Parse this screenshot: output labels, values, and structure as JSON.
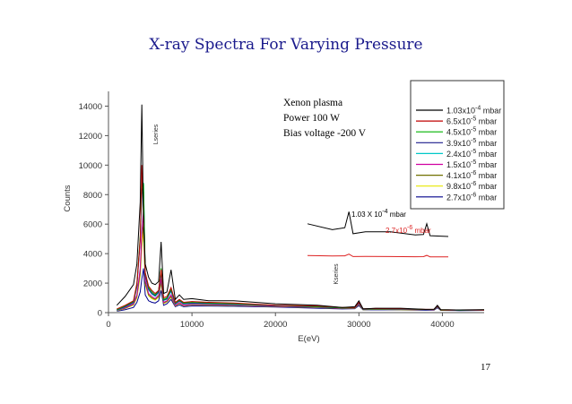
{
  "slide": {
    "page_number": "17"
  },
  "chart_data": {
    "type": "line",
    "title": "X-ray Spectra For Varying Pressure",
    "xlabel": "E(eV)",
    "ylabel": "Counts",
    "xlim": [
      0,
      45000
    ],
    "ylim": [
      0,
      15000
    ],
    "xticks": [
      0,
      10000,
      20000,
      30000,
      40000
    ],
    "yticks": [
      0,
      2000,
      4000,
      6000,
      8000,
      10000,
      12000,
      14000
    ],
    "x": [
      1000,
      2000,
      3000,
      3400,
      3800,
      4000,
      4200,
      4400,
      4800,
      5200,
      5600,
      6000,
      6300,
      6600,
      7000,
      7500,
      8000,
      8500,
      9000,
      10000,
      12000,
      15000,
      20000,
      25000,
      28000,
      29500,
      30000,
      30500,
      32000,
      35000,
      38000,
      39000,
      39400,
      39800,
      42000,
      45000
    ],
    "series": [
      {
        "name": "1.03x10^-4 mbar",
        "color": "#000000",
        "values": [
          500,
          1100,
          1900,
          3300,
          7500,
          14100,
          6000,
          3300,
          2400,
          2000,
          1900,
          2100,
          4800,
          1300,
          1400,
          2900,
          900,
          1200,
          900,
          950,
          800,
          800,
          600,
          500,
          350,
          400,
          800,
          250,
          300,
          300,
          220,
          230,
          500,
          200,
          180,
          200
        ]
      },
      {
        "name": "6.5x10^-5 mbar",
        "color": "#c00000",
        "values": [
          250,
          500,
          800,
          2000,
          5000,
          10000,
          6500,
          2700,
          1800,
          1500,
          1300,
          1500,
          2900,
          1000,
          1100,
          1700,
          700,
          900,
          700,
          750,
          700,
          650,
          500,
          450,
          350,
          350,
          700,
          260,
          280,
          260,
          220,
          230,
          460,
          200,
          180,
          190
        ]
      },
      {
        "name": "4.5x10^-5 mbar",
        "color": "#00b400",
        "values": [
          200,
          450,
          750,
          1900,
          5200,
          9000,
          8700,
          2700,
          1700,
          1400,
          1200,
          1500,
          3000,
          900,
          1000,
          1600,
          650,
          850,
          650,
          700,
          650,
          600,
          500,
          400,
          330,
          340,
          700,
          250,
          270,
          250,
          210,
          220,
          460,
          200,
          170,
          190
        ]
      },
      {
        "name": "3.9x10^-5 mbar",
        "color": "#1c1c8c",
        "values": [
          180,
          400,
          700,
          1800,
          4900,
          8400,
          8200,
          2500,
          1600,
          1300,
          1150,
          1400,
          2800,
          850,
          950,
          1500,
          600,
          800,
          600,
          650,
          620,
          580,
          480,
          390,
          320,
          330,
          650,
          240,
          260,
          240,
          200,
          210,
          420,
          190,
          170,
          180
        ]
      },
      {
        "name": "2.4x10^-5 mbar",
        "color": "#00c8c8",
        "values": [
          160,
          380,
          680,
          1750,
          5100,
          8000,
          8800,
          2600,
          1550,
          1250,
          1100,
          1350,
          2700,
          820,
          900,
          1450,
          580,
          780,
          580,
          620,
          600,
          560,
          470,
          380,
          320,
          330,
          640,
          230,
          250,
          230,
          200,
          210,
          420,
          190,
          170,
          180
        ]
      },
      {
        "name": "1.5x10^-5 mbar",
        "color": "#d000a0",
        "values": [
          150,
          330,
          600,
          1200,
          3000,
          5500,
          7000,
          2200,
          1300,
          1100,
          950,
          1200,
          2300,
          700,
          800,
          1200,
          500,
          680,
          500,
          560,
          550,
          520,
          440,
          360,
          300,
          310,
          600,
          220,
          240,
          220,
          190,
          200,
          400,
          180,
          160,
          170
        ]
      },
      {
        "name": "4.1x10^-6 mbar",
        "color": "#707000",
        "values": [
          140,
          300,
          550,
          1100,
          2700,
          5000,
          6000,
          2000,
          1200,
          1000,
          900,
          1100,
          2100,
          650,
          750,
          1100,
          480,
          640,
          480,
          540,
          530,
          500,
          430,
          350,
          290,
          300,
          580,
          210,
          230,
          210,
          180,
          190,
          390,
          170,
          160,
          170
        ]
      },
      {
        "name": "9.8x10^-6 mbar",
        "color": "#e8e800",
        "values": [
          130,
          280,
          520,
          1000,
          2500,
          4500,
          5500,
          1900,
          1150,
          950,
          850,
          1050,
          2000,
          620,
          720,
          1050,
          460,
          620,
          460,
          520,
          510,
          490,
          420,
          340,
          280,
          290,
          560,
          200,
          220,
          200,
          180,
          190,
          380,
          170,
          150,
          160
        ]
      },
      {
        "name": "2.7x10^-6 mbar",
        "color": "#00008b",
        "values": [
          100,
          200,
          350,
          700,
          1400,
          2300,
          3000,
          1200,
          800,
          700,
          650,
          800,
          1500,
          500,
          600,
          900,
          400,
          520,
          400,
          450,
          450,
          430,
          380,
          300,
          250,
          270,
          480,
          180,
          200,
          180,
          160,
          170,
          330,
          150,
          140,
          150
        ]
      }
    ],
    "annotations": {
      "lseries": "Lseries",
      "kseries": "Kseries",
      "inset_high": "1.03 X 10^-4 mbar",
      "inset_low": "2.7x10^-6 mbar",
      "note_lines": [
        "Xenon plasma",
        "Power 100 W",
        "Bias voltage  -200 V"
      ]
    },
    "legend_position": "top-right"
  }
}
